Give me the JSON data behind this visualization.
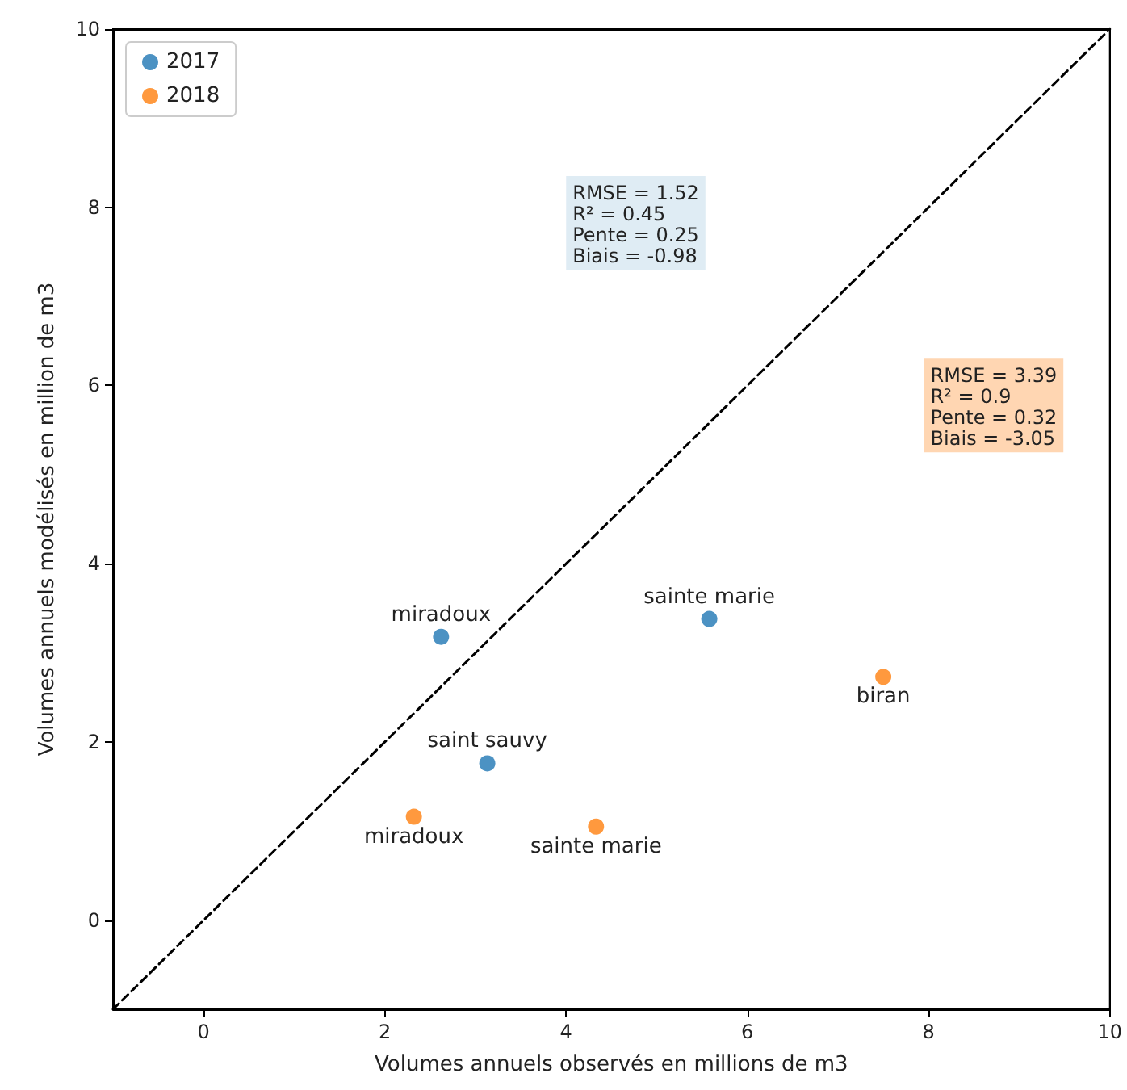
{
  "chart_data": {
    "type": "scatter",
    "xlabel": "Volumes annuels observés en millions de m3",
    "ylabel": "Volumes annuels modélisés en million de m3",
    "xlim": [
      -1,
      10
    ],
    "xticks": [
      0,
      2,
      4,
      6,
      8,
      10
    ],
    "ylim": [
      -1,
      10
    ],
    "yticks": [
      0,
      2,
      4,
      6,
      8,
      10
    ],
    "grid": false,
    "legend": "top left",
    "marker": "circle",
    "series": [
      {
        "name": "2017",
        "color": "#1f77b4",
        "x": [
          2.62,
          5.58,
          3.13
        ],
        "values": [
          3.18,
          3.38,
          1.76
        ]
      },
      {
        "name": "2018",
        "color": "#ff7f0e",
        "x": [
          2.32,
          4.33,
          7.5
        ],
        "values": [
          1.16,
          1.05,
          2.73
        ]
      },
      {
        "type": "line",
        "color": "#000000",
        "x": [
          -1,
          10
        ],
        "values": [
          -1,
          10
        ],
        "line_style": "dashed",
        "marker": "none"
      }
    ],
    "annotations": [
      {
        "text": "miradoux",
        "x": 2.62,
        "y": 3.18
      },
      {
        "text": "sainte marie",
        "x": 5.58,
        "y": 3.38
      },
      {
        "text": "saint sauvy",
        "x": 3.13,
        "y": 1.76
      },
      {
        "text": "miradoux",
        "x": 2.32,
        "y": 1.16
      },
      {
        "text": "sainte marie",
        "x": 4.33,
        "y": 1.05
      },
      {
        "text": "biran",
        "x": 7.5,
        "y": 2.73
      },
      "RMSE = 1.52\nR² = 0.45\nPente = 0.25\nBiais = -0.98",
      "RMSE = 3.39\nR² = 0.9\nPente = 0.32\nBiais = -3.05"
    ]
  }
}
